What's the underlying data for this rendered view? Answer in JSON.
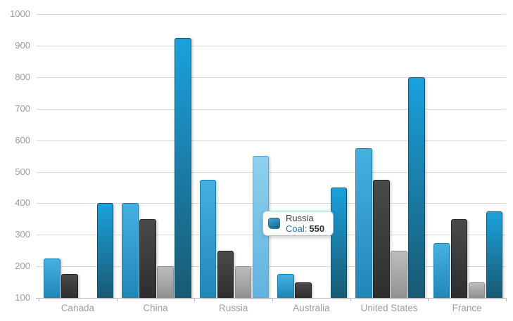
{
  "chart_data": {
    "type": "bar",
    "title": "",
    "xlabel": "",
    "ylabel": "",
    "categories": [
      "Canada",
      "China",
      "Russia",
      "Australia",
      "United States",
      "France"
    ],
    "series": [
      {
        "id": "series-1",
        "name": "",
        "color_top": "#45b1e1",
        "color_bottom": "#2187b9",
        "border": "#1b7bad",
        "values": [
          225,
          400,
          475,
          175,
          575,
          275
        ]
      },
      {
        "id": "series-2",
        "name": "",
        "color_top": "#4a4a4a",
        "color_bottom": "#2e2e2e",
        "border": "#232323",
        "values": [
          175,
          350,
          250,
          150,
          475,
          350
        ]
      },
      {
        "id": "series-3",
        "name": "",
        "color_top": "#bdbdbd",
        "color_bottom": "#929292",
        "border": "#8d8d8d",
        "values": [
          null,
          200,
          200,
          null,
          250,
          150
        ]
      },
      {
        "id": "series-4",
        "name": "Coal",
        "color_top": "#1aa1dd",
        "color_bottom": "#195a73",
        "border": "#14516b",
        "values": [
          400,
          925,
          550,
          450,
          800,
          375
        ]
      }
    ],
    "highlight": {
      "category_index": 2,
      "series_index": 3,
      "color_top": "#8dd0ee",
      "color_bottom": "#61b4de",
      "border": "#58a9d4"
    },
    "y_ticks": [
      100,
      200,
      300,
      400,
      500,
      600,
      700,
      800,
      900,
      1000
    ],
    "ylim": [
      100,
      1000
    ],
    "grid": true,
    "legend": "none",
    "style": {
      "gridline_color": "#d9d9d9",
      "axis_line_color": "#b3b3b3",
      "y_label_color": "#9b9b9b",
      "x_label_color": "#98a0a7"
    }
  },
  "tooltip": {
    "country": "Russia",
    "series_label": "Coal:",
    "value": "550",
    "series_label_color": "#2077ad",
    "marker_color_top": "#3fa9d8",
    "marker_color_bottom": "#186287",
    "border_color": "#a4c7d8"
  }
}
